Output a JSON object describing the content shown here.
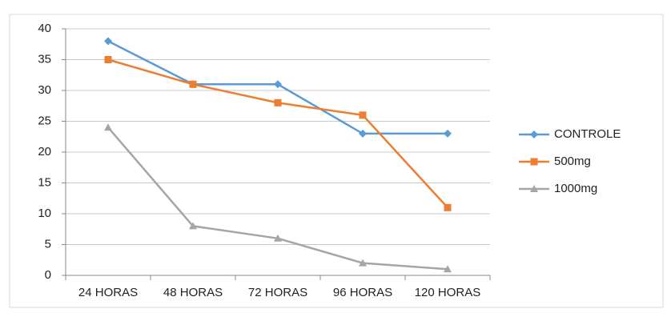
{
  "chart_data": {
    "type": "line",
    "categories": [
      "24 HORAS",
      "48 HORAS",
      "72 HORAS",
      "96 HORAS",
      "120 HORAS"
    ],
    "series": [
      {
        "name": "CONTROLE",
        "color": "#5b9bd5",
        "marker": "diamond",
        "values": [
          38,
          31,
          31,
          23,
          23
        ]
      },
      {
        "name": "500mg",
        "color": "#ed7d31",
        "marker": "square",
        "values": [
          35,
          31,
          28,
          26,
          11
        ]
      },
      {
        "name": "1000mg",
        "color": "#a5a5a5",
        "marker": "triangle",
        "values": [
          24,
          8,
          6,
          2,
          1
        ]
      }
    ],
    "ylim": [
      0,
      40
    ],
    "yticks": [
      0,
      5,
      10,
      15,
      20,
      25,
      30,
      35,
      40
    ],
    "grid": true,
    "legend": "right"
  }
}
